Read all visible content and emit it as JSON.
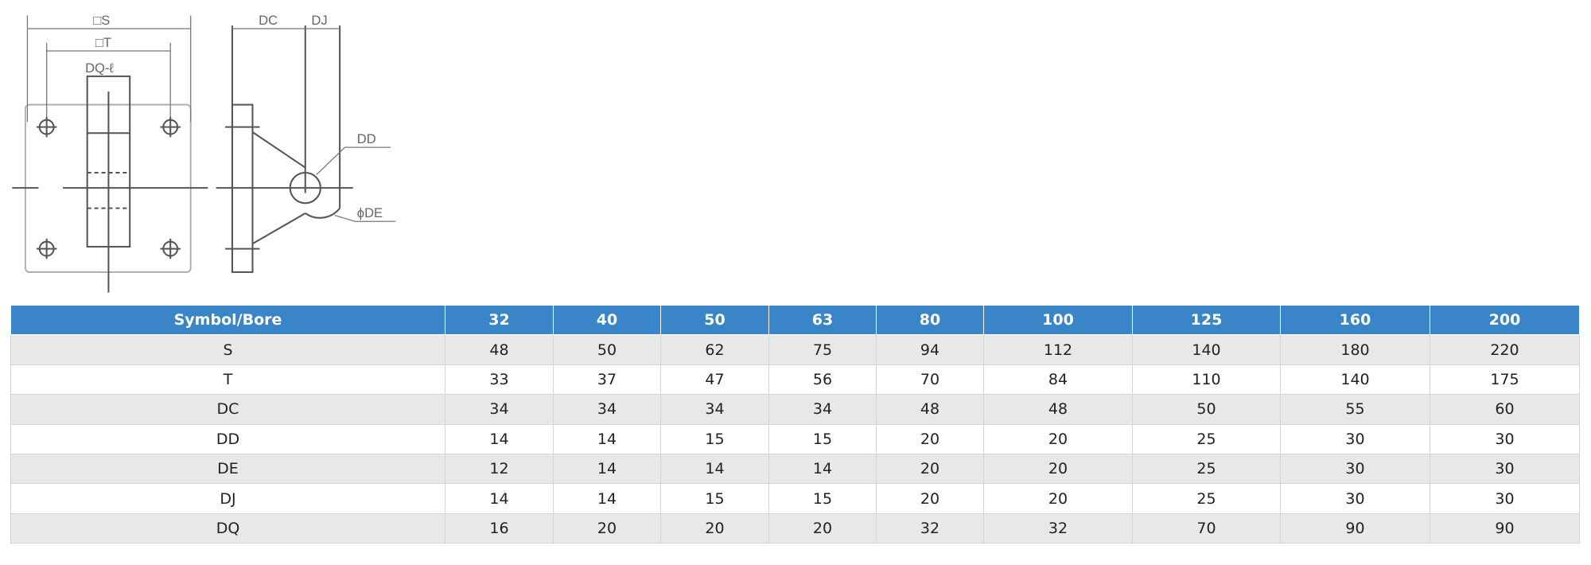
{
  "diagram": {
    "labels": {
      "s": "□S",
      "t": "□T",
      "dq": "DQ-ℓ",
      "dc": "DC",
      "dj": "DJ",
      "dd": "DD",
      "de": "ϕDE"
    }
  },
  "table": {
    "header": [
      "Symbol/Bore",
      "32",
      "40",
      "50",
      "63",
      "80",
      "100",
      "125",
      "160",
      "200"
    ],
    "rows": [
      [
        "S",
        "48",
        "50",
        "62",
        "75",
        "94",
        "112",
        "140",
        "180",
        "220"
      ],
      [
        "T",
        "33",
        "37",
        "47",
        "56",
        "70",
        "84",
        "110",
        "140",
        "175"
      ],
      [
        "DC",
        "34",
        "34",
        "34",
        "34",
        "48",
        "48",
        "50",
        "55",
        "60"
      ],
      [
        "DD",
        "14",
        "14",
        "15",
        "15",
        "20",
        "20",
        "25",
        "30",
        "30"
      ],
      [
        "DE",
        "12",
        "14",
        "14",
        "14",
        "20",
        "20",
        "25",
        "30",
        "30"
      ],
      [
        "DJ",
        "14",
        "14",
        "15",
        "15",
        "20",
        "20",
        "25",
        "30",
        "30"
      ],
      [
        "DQ",
        "16",
        "20",
        "20",
        "20",
        "32",
        "32",
        "70",
        "90",
        "90"
      ]
    ]
  }
}
